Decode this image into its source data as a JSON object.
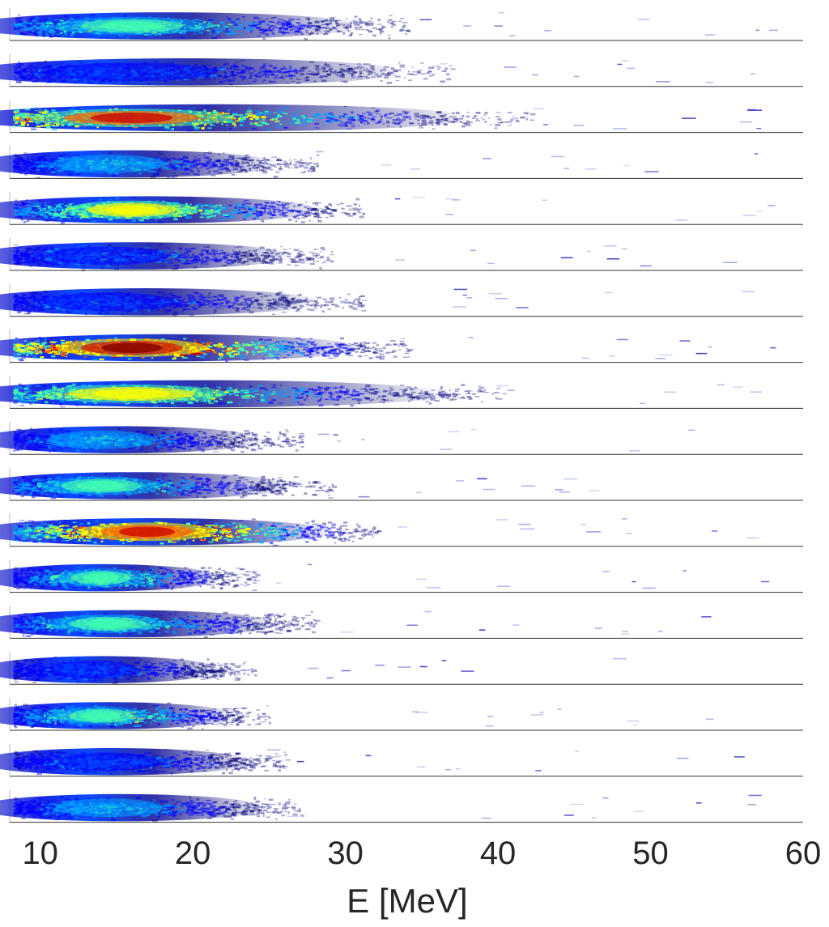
{
  "chart_data": {
    "type": "heatmap",
    "title": "",
    "xlabel": "E [MeV]",
    "ylabel": "",
    "xlim": [
      8,
      60
    ],
    "x_ticks": [
      10,
      20,
      30,
      40,
      50,
      60
    ],
    "x_tick_labels": [
      "10",
      "20",
      "30",
      "40",
      "50",
      "60"
    ],
    "grid": false,
    "colormap": [
      "#00007f",
      "#0000ff",
      "#00a0ff",
      "#40ffb0",
      "#ffff00",
      "#ff6000",
      "#cc0000",
      "#7f0000"
    ],
    "spectra": [
      {
        "peak_E": 16.0,
        "max_E": 32,
        "peak_intensity": 0.5
      },
      {
        "peak_E": 16.0,
        "max_E": 35,
        "peak_intensity": 0.3
      },
      {
        "peak_E": 16.0,
        "max_E": 40,
        "peak_intensity": 0.8
      },
      {
        "peak_E": 14.5,
        "max_E": 26,
        "peak_intensity": 0.35
      },
      {
        "peak_E": 16.0,
        "max_E": 29,
        "peak_intensity": 0.62
      },
      {
        "peak_E": 14.5,
        "max_E": 27,
        "peak_intensity": 0.32
      },
      {
        "peak_E": 14.5,
        "max_E": 29,
        "peak_intensity": 0.3
      },
      {
        "peak_E": 16.0,
        "max_E": 32,
        "peak_intensity": 1.0
      },
      {
        "peak_E": 16.0,
        "max_E": 38,
        "peak_intensity": 0.62
      },
      {
        "peak_E": 14.0,
        "max_E": 25,
        "peak_intensity": 0.35
      },
      {
        "peak_E": 14.0,
        "max_E": 27,
        "peak_intensity": 0.45
      },
      {
        "peak_E": 17.0,
        "max_E": 30,
        "peak_intensity": 0.9
      },
      {
        "peak_E": 14.0,
        "max_E": 22,
        "peak_intensity": 0.5
      },
      {
        "peak_E": 14.5,
        "max_E": 26,
        "peak_intensity": 0.48
      },
      {
        "peak_E": 13.5,
        "max_E": 22,
        "peak_intensity": 0.3
      },
      {
        "peak_E": 14.0,
        "max_E": 23,
        "peak_intensity": 0.52
      },
      {
        "peak_E": 14.5,
        "max_E": 24,
        "peak_intensity": 0.3
      },
      {
        "peak_E": 14.5,
        "max_E": 25,
        "peak_intensity": 0.35
      }
    ]
  }
}
